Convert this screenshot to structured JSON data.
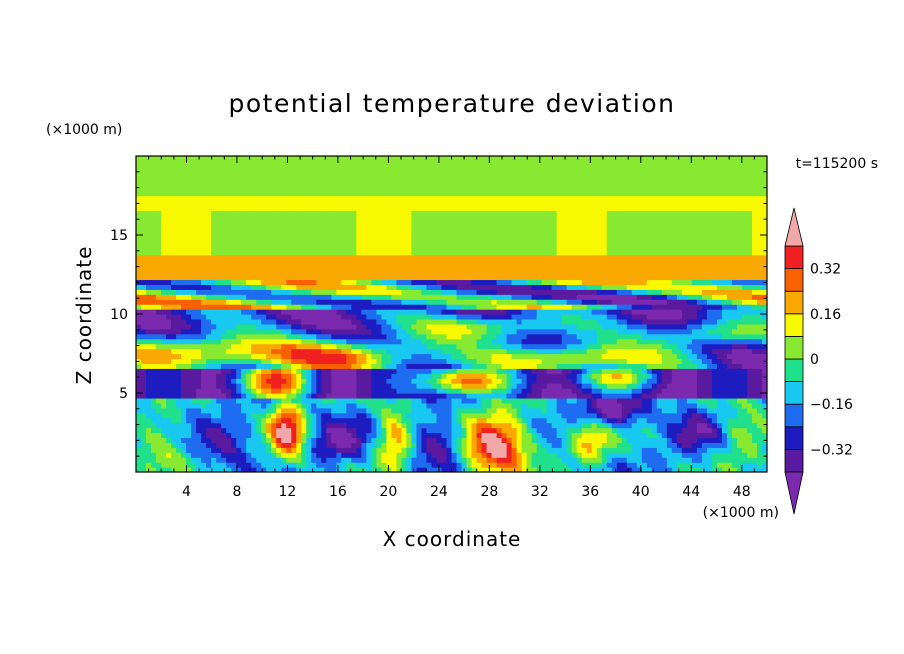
{
  "chart_data": {
    "type": "heatmap",
    "title": "potential temperature deviation",
    "xlabel": "X coordinate",
    "ylabel": "Z coordinate",
    "x_unit": "(×1000 m)",
    "y_unit": "(×1000 m)",
    "time_label": "t=115200 s",
    "xlim": [
      0,
      50
    ],
    "ylim": [
      0,
      20
    ],
    "x_ticks": [
      "4",
      "8",
      "12",
      "16",
      "20",
      "24",
      "28",
      "32",
      "36",
      "40",
      "44",
      "48"
    ],
    "x_tick_values": [
      4,
      8,
      12,
      16,
      20,
      24,
      28,
      32,
      36,
      40,
      44,
      48
    ],
    "y_ticks": [
      "5",
      "10",
      "15"
    ],
    "y_tick_values": [
      5,
      10,
      15
    ],
    "colorbar": {
      "levels": [
        -0.4,
        -0.32,
        -0.24,
        -0.16,
        -0.08,
        0,
        0.08,
        0.16,
        0.24,
        0.32,
        0.4
      ],
      "labels": [
        "0.32",
        "0.16",
        "0",
        "−0.16",
        "−0.32"
      ],
      "label_values": [
        0.32,
        0.16,
        0,
        -0.16,
        -0.32
      ],
      "colors": [
        "#7b2ab0",
        "#5a1aa0",
        "#1c1cc0",
        "#1e6cf0",
        "#18c8f0",
        "#20e08c",
        "#88ea30",
        "#f8f800",
        "#f8a800",
        "#f86000",
        "#f02020",
        "#f0a8a8"
      ],
      "under_color": "#7b2ab0",
      "over_color": "#f0a8a8"
    }
  }
}
